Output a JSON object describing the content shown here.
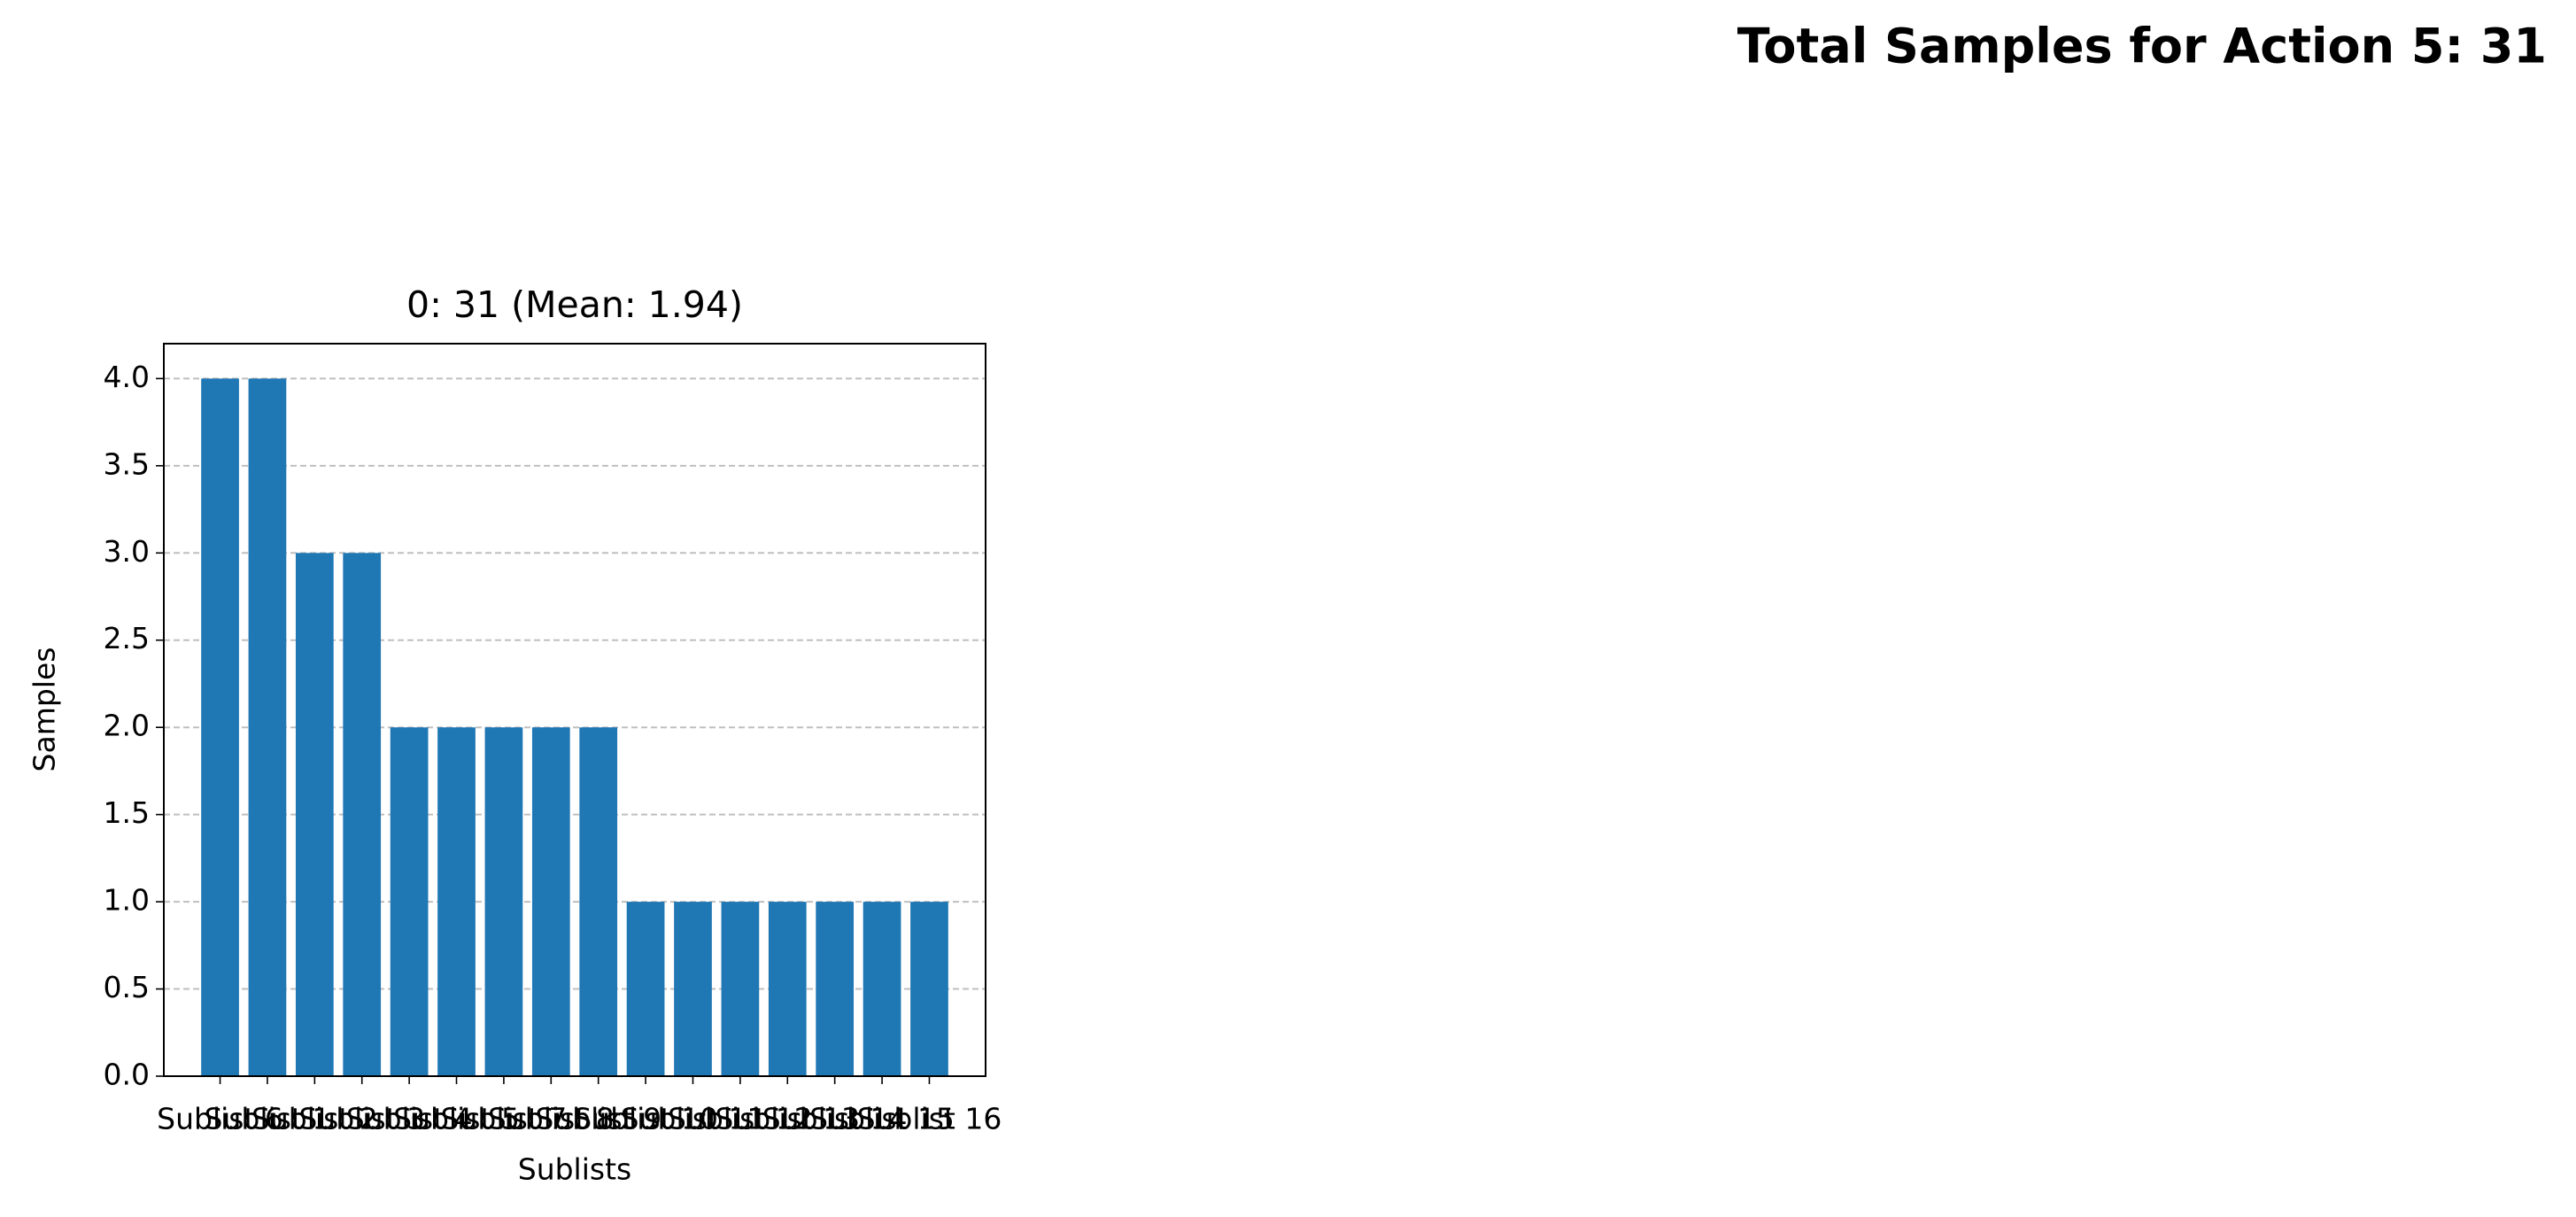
{
  "chart_data": {
    "type": "bar",
    "suptitle": "Total Samples for Action 5: 31",
    "title": "0: 31 (Mean: 1.94)",
    "xlabel": "Sublists",
    "ylabel": "Samples",
    "categories": [
      "Sublist 6",
      "Sublist 1",
      "Sublist 2",
      "Sublist 3",
      "Sublist 4",
      "Sublist 5",
      "Sublist 7",
      "Sublist 8",
      "Sublist 9",
      "Sublist 10",
      "Sublist 11",
      "Sublist 12",
      "Sublist 13",
      "Sublist 14",
      "Sublist 15",
      "Sublist 16"
    ],
    "values": [
      4,
      4,
      3,
      3,
      2,
      2,
      2,
      2,
      2,
      1,
      1,
      1,
      1,
      1,
      1,
      1
    ],
    "color": "#1f77b4",
    "ylim": [
      0,
      4.2
    ],
    "yticks": [
      {
        "value": 0,
        "label": "0.0"
      },
      {
        "value": 0.5,
        "label": "0.5"
      },
      {
        "value": 1,
        "label": "1.0"
      },
      {
        "value": 1.5,
        "label": "1.5"
      },
      {
        "value": 2,
        "label": "2.0"
      },
      {
        "value": 2.5,
        "label": "2.5"
      },
      {
        "value": 3,
        "label": "3.0"
      },
      {
        "value": 3.5,
        "label": "3.5"
      },
      {
        "value": 4,
        "label": "4.0"
      }
    ],
    "grid": true
  }
}
